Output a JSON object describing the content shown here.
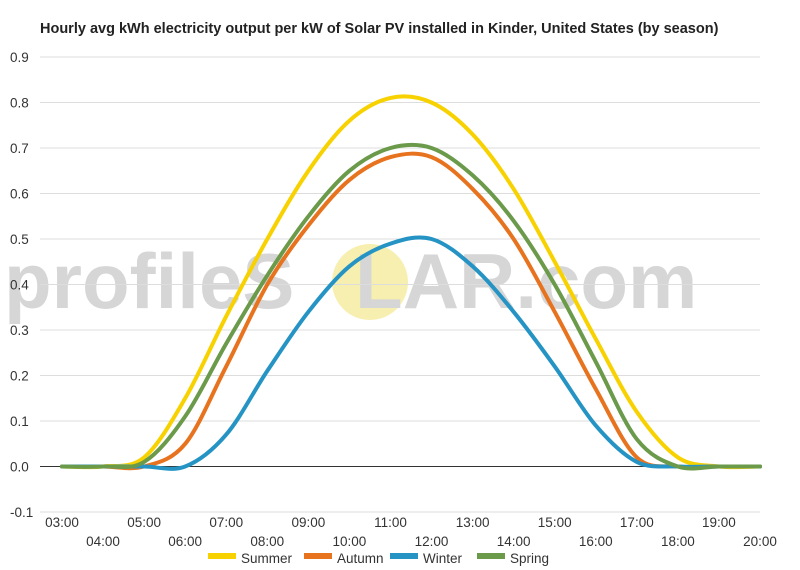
{
  "chart_data": {
    "type": "line",
    "title": "Hourly avg kWh electricity output per kW of Solar PV installed in Kinder, United States (by season)",
    "xlabel": "",
    "ylabel": "",
    "x": [
      "03:00",
      "04:00",
      "05:00",
      "06:00",
      "07:00",
      "08:00",
      "09:00",
      "10:00",
      "11:00",
      "12:00",
      "13:00",
      "14:00",
      "15:00",
      "16:00",
      "17:00",
      "18:00",
      "19:00",
      "20:00"
    ],
    "ylim": [
      -0.1,
      0.9
    ],
    "yticks": [
      "-0.1",
      "0.0",
      "0.1",
      "0.2",
      "0.3",
      "0.4",
      "0.5",
      "0.6",
      "0.7",
      "0.8",
      "0.9"
    ],
    "grid": true,
    "legend_position": "bottom",
    "series": [
      {
        "name": "Summer",
        "color": "#f7d200",
        "values": [
          0.0,
          0.0,
          0.02,
          0.15,
          0.33,
          0.5,
          0.65,
          0.76,
          0.81,
          0.8,
          0.73,
          0.61,
          0.45,
          0.28,
          0.12,
          0.02,
          0.0,
          0.0
        ]
      },
      {
        "name": "Autumn",
        "color": "#e8731f",
        "values": [
          0.0,
          0.0,
          0.0,
          0.05,
          0.22,
          0.4,
          0.53,
          0.63,
          0.68,
          0.68,
          0.61,
          0.5,
          0.34,
          0.17,
          0.02,
          0.0,
          0.0,
          0.0
        ]
      },
      {
        "name": "Winter",
        "color": "#2594c4",
        "values": [
          0.0,
          0.0,
          0.0,
          0.0,
          0.07,
          0.21,
          0.34,
          0.44,
          0.49,
          0.5,
          0.44,
          0.34,
          0.22,
          0.09,
          0.01,
          0.0,
          0.0,
          0.0
        ]
      },
      {
        "name": "Spring",
        "color": "#6a9a4a",
        "values": [
          0.0,
          0.0,
          0.01,
          0.11,
          0.27,
          0.42,
          0.55,
          0.65,
          0.7,
          0.7,
          0.64,
          0.54,
          0.4,
          0.23,
          0.06,
          0.0,
          0.0,
          0.0
        ]
      }
    ]
  },
  "watermark": {
    "left": "profileS",
    "middle": "O",
    "right": "LAR.com",
    "sun_color": "#f7efb0"
  },
  "colors": {
    "grid": "#dddddd",
    "zero_line": "#333333",
    "text": "#333333"
  }
}
